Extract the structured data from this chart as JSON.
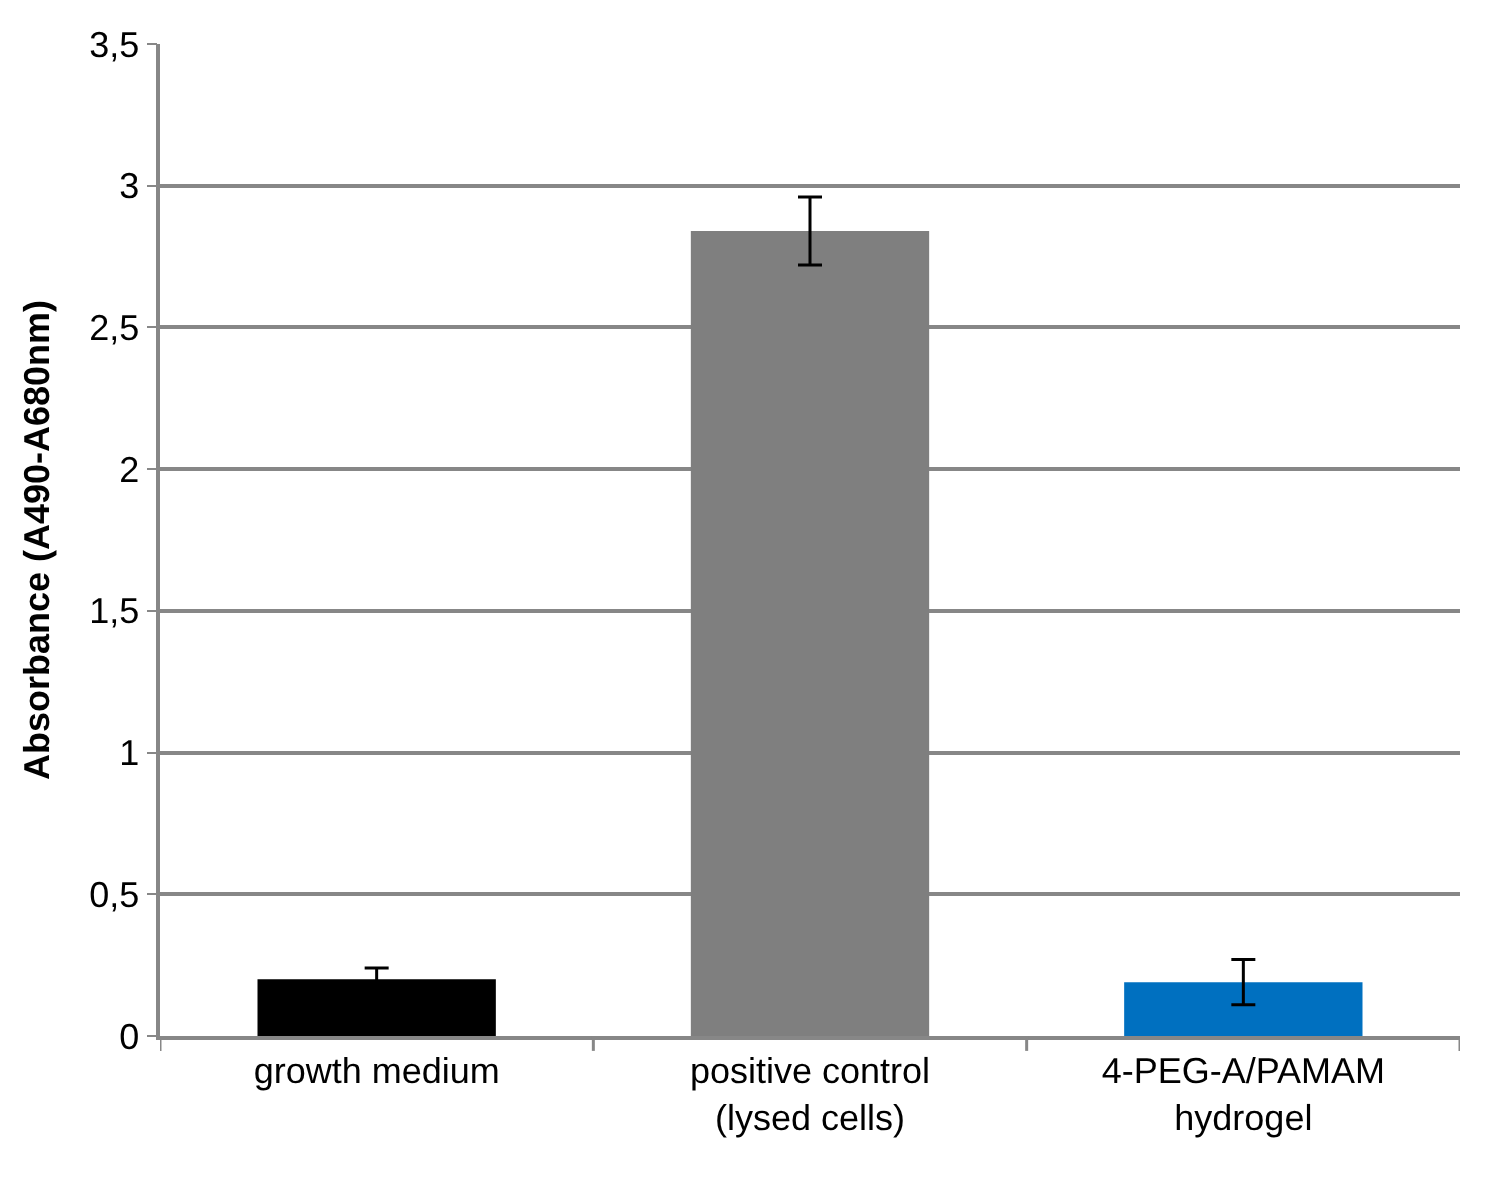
{
  "chart_data": {
    "type": "bar",
    "ylabel": "Absorbance (A490-A680nm)",
    "categories": [
      "growth medium",
      "positive control\n(lysed cells)",
      "4-PEG-A/PAMAM\nhydrogel"
    ],
    "values": [
      0.2,
      2.84,
      0.19
    ],
    "colors": [
      "#000000",
      "#7f7f7f",
      "#0070c0"
    ],
    "errors": [
      0.04,
      0.12,
      0.08
    ],
    "ylim": [
      0,
      3.5
    ],
    "yticks": [
      {
        "value": 0,
        "label": "0"
      },
      {
        "value": 0.5,
        "label": "0,5"
      },
      {
        "value": 1,
        "label": "1"
      },
      {
        "value": 1.5,
        "label": "1,5"
      },
      {
        "value": 2,
        "label": "2"
      },
      {
        "value": 2.5,
        "label": "2,5"
      },
      {
        "value": 3,
        "label": "3"
      },
      {
        "value": 3.5,
        "label": "3,5"
      }
    ],
    "grid": "y"
  }
}
